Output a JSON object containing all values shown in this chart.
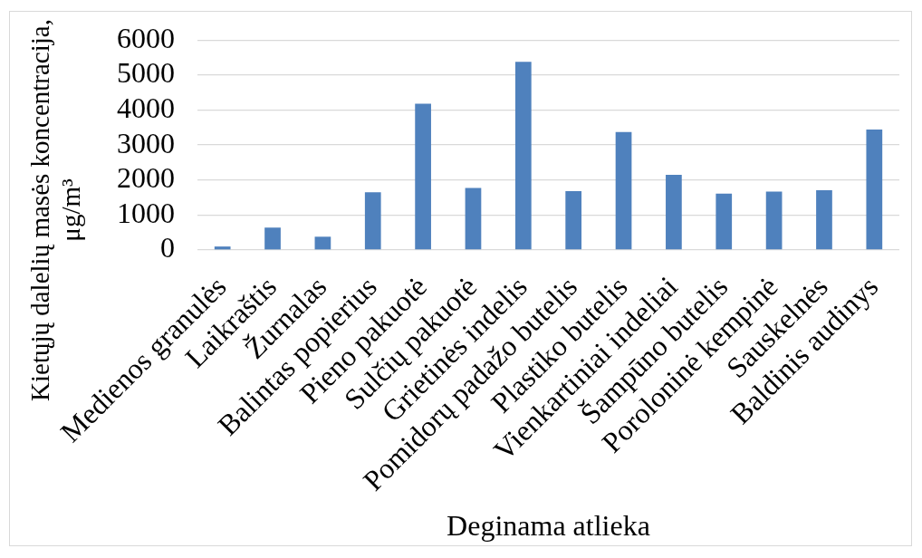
{
  "chart_data": {
    "type": "bar",
    "xlabel": "Deginama atlieka",
    "ylabel": "Kietųjų dalelių masės koncentracija, μg/m³",
    "categories": [
      "Medienos granulės",
      "Laikraštis",
      "Žurnalas",
      "Balintas popierius",
      "Pieno pakuotė",
      "Sulčių pakuotė",
      "Grietinės indelis",
      "Pomidorų padažo butelis",
      "Plastiko butelis",
      "Vienkartiniai indeliai",
      "Šampūno butelis",
      "Poroloninė kempinė",
      "Sauskelnės",
      "Baldinis audinys"
    ],
    "values": [
      100,
      640,
      380,
      1650,
      4180,
      1770,
      5380,
      1680,
      3370,
      2150,
      1610,
      1670,
      1710,
      3440
    ],
    "color": "#4f81bd",
    "ylim": [
      0,
      6000
    ],
    "yticks": [
      0,
      1000,
      2000,
      3000,
      4000,
      5000,
      6000
    ],
    "grid": "y"
  }
}
